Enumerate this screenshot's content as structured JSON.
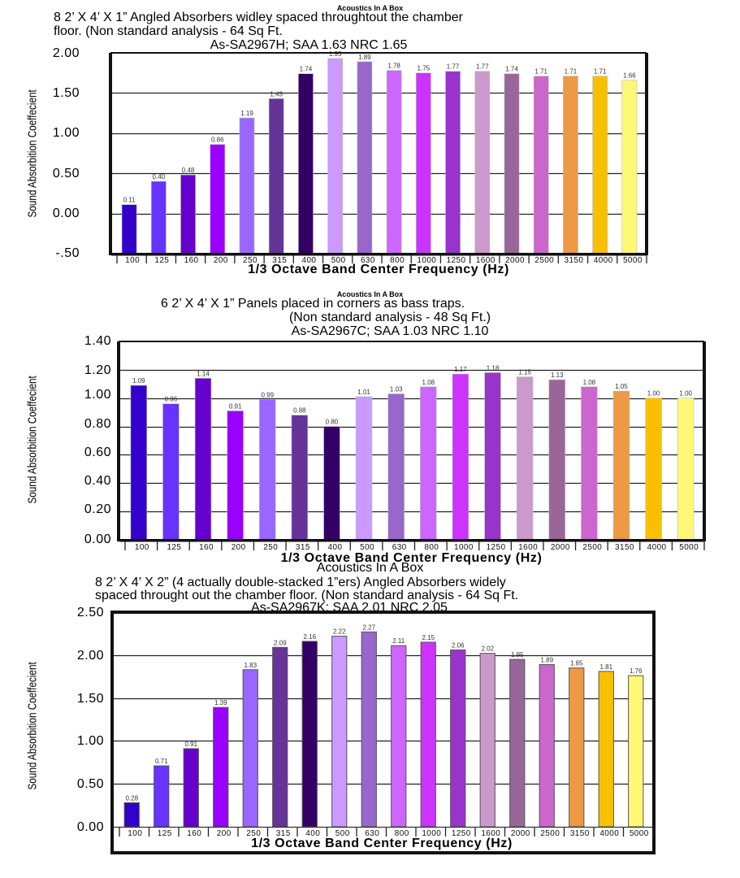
{
  "charts": [
    {
      "brand": "Acoustics In A Box",
      "description_lines": [
        "8  2’ X 4’ X 1” Angled Absorbers widley spaced throughtout the chamber",
        "floor. (Non standard analysis - 64 Sq Ft."
      ],
      "summary": "As-SA2967H;  SAA 1.63  NRC 1.65",
      "ylabel": "Sound Absorbition Coeffecient",
      "xlabel": "1/3 Octave Band Center Frequency (Hz)",
      "yticks": [
        "2.00",
        "1.50",
        "1.00",
        "0.50",
        "0.00",
        "-.50"
      ]
    },
    {
      "brand": "Acoustics In A Box",
      "description_lines": [
        "6  2’ X 4’ X 1” Panels placed in corners as bass traps.",
        "(Non standard analysis - 48 Sq Ft.)"
      ],
      "summary": "As-SA2967C;  SAA 1.03  NRC 1.10",
      "ylabel": "Sound Absorbition Coeffecient",
      "xlabel": "1/3 Octave Band Center Frequency (Hz)",
      "yticks": [
        "1.40",
        "1.20",
        "1.00",
        "0.80",
        "0.60",
        "0.40",
        "0.20",
        "0.00"
      ]
    },
    {
      "brand": "Acoustics In A Box",
      "description_lines": [
        "8  2’ X 4’ X 2” (4 actually double-stacked 1”ers) Angled Absorbers widely",
        "spaced throught out the chamber floor. (Non standard analysis - 64 Sq Ft."
      ],
      "summary": "As-SA2967K;  SAA 2.01  NRC 2.05",
      "ylabel": "Sound Absorbition Coeffecient",
      "xlabel": "1/3 Octave Band Center Frequency (Hz)",
      "yticks": [
        "2.50",
        "2.00",
        "1.50",
        "1.00",
        "0.50",
        "0.00"
      ]
    }
  ],
  "chart_data": [
    {
      "type": "bar",
      "title": "Acoustics In A Box",
      "subtitle": "8  2’ X 4’ X 1” Angled Absorbers widley spaced throughtout the chamber floor. (Non standard analysis - 64 Sq Ft. As-SA2967H;  SAA 1.63  NRC 1.65",
      "xlabel": "1/3 Octave Band Center Frequency (Hz)",
      "ylabel": "Sound Absorbition Coeffecient",
      "categories": [
        "100",
        "125",
        "160",
        "200",
        "250",
        "315",
        "400",
        "500",
        "630",
        "800",
        "1000",
        "1250",
        "1600",
        "2000",
        "2500",
        "3150",
        "4000",
        "5000"
      ],
      "values": [
        0.11,
        0.4,
        0.48,
        0.86,
        1.19,
        1.43,
        1.74,
        1.93,
        1.89,
        1.78,
        1.75,
        1.77,
        1.77,
        1.74,
        1.71,
        1.71,
        1.71,
        1.66
      ],
      "value_labels": [
        "0.11",
        "0.40",
        "0.48",
        "0.86",
        "1.19",
        "1.43",
        "1.74",
        "1.93",
        "1.89",
        "1.78",
        "1.75",
        "1.77",
        "1.77",
        "1.74",
        "1.71",
        "1.71",
        "1.71",
        "1.66"
      ],
      "ylim": [
        -0.5,
        2.0
      ],
      "ystep": 0.5,
      "bar_base": -0.5,
      "grid": true,
      "legend": "none"
    },
    {
      "type": "bar",
      "title": "Acoustics In A Box",
      "subtitle": "6  2’ X 4’ X 1” Panels placed in corners as bass traps. (Non standard analysis - 48 Sq Ft.) As-SA2967C;  SAA 1.03  NRC 1.10",
      "xlabel": "1/3 Octave Band Center Frequency (Hz)",
      "ylabel": "Sound Absorbition Coeffecient",
      "categories": [
        "100",
        "125",
        "160",
        "200",
        "250",
        "315",
        "400",
        "500",
        "630",
        "800",
        "1000",
        "1250",
        "1600",
        "2000",
        "2500",
        "3150",
        "4000",
        "5000"
      ],
      "values": [
        1.09,
        0.96,
        1.14,
        0.91,
        0.99,
        0.88,
        0.8,
        1.01,
        1.03,
        1.08,
        1.17,
        1.18,
        1.15,
        1.13,
        1.08,
        1.05,
        1.0,
        1.0
      ],
      "value_labels": [
        "1.09",
        "0.96",
        "1.14",
        "0.91",
        "0.99",
        "0.88",
        "0.80",
        "1.01",
        "1.03",
        "1.08",
        "1.17",
        "1.18",
        "1.15",
        "1.13",
        "1.08",
        "1.05",
        "1.00",
        "1.00"
      ],
      "ylim": [
        0.0,
        1.4
      ],
      "ystep": 0.2,
      "bar_base": 0.0,
      "grid": true,
      "legend": "none"
    },
    {
      "type": "bar",
      "title": "Acoustics In A Box",
      "subtitle": "8  2’ X 4’ X 2” (4 actually double-stacked 1”ers) Angled Absorbers widely spaced throught out the chamber floor. (Non standard analysis - 64 Sq Ft. As-SA2967K;  SAA 2.01  NRC 2.05",
      "xlabel": "1/3 Octave Band Center Frequency (Hz)",
      "ylabel": "Sound Absorbition Coeffecient",
      "categories": [
        "100",
        "125",
        "160",
        "200",
        "250",
        "315",
        "400",
        "500",
        "630",
        "800",
        "1000",
        "1250",
        "1600",
        "2000",
        "2500",
        "3150",
        "4000",
        "5000"
      ],
      "values": [
        0.28,
        0.71,
        0.91,
        1.39,
        1.83,
        2.09,
        2.16,
        2.22,
        2.27,
        2.11,
        2.15,
        2.06,
        2.02,
        1.95,
        1.89,
        1.85,
        1.81,
        1.76
      ],
      "value_labels": [
        "0.28",
        "0.71",
        "0.91",
        "1.39",
        "1.83",
        "2.09",
        "2.16",
        "2.22",
        "2.27",
        "2.11",
        "2.15",
        "2.06",
        "2.02",
        "1.95",
        "1.89",
        "1.85",
        "1.81",
        "1.76"
      ],
      "ylim": [
        0.0,
        2.5
      ],
      "ystep": 0.5,
      "bar_base": 0.0,
      "grid": true,
      "legend": "none"
    }
  ],
  "bar_colors": [
    "#3300cc",
    "#6633ff",
    "#6600cc",
    "#9900ff",
    "#9966ff",
    "#663399",
    "#330066",
    "#cc99ff",
    "#9966cc",
    "#cc66ff",
    "#cc33ff",
    "#9933cc",
    "#cc99cc",
    "#996699",
    "#cc66cc",
    "#ee9944",
    "#f8c000",
    "#fff877"
  ]
}
